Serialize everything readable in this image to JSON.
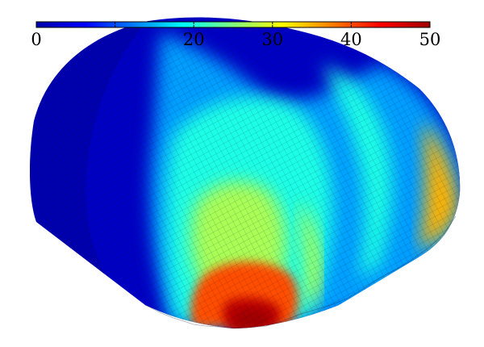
{
  "colorbar": {
    "min": 0,
    "max": 50,
    "ticks": [
      {
        "value": 0,
        "label": "0"
      },
      {
        "value": 20,
        "label": "20"
      },
      {
        "value": 30,
        "label": "30"
      },
      {
        "value": 40,
        "label": "40"
      },
      {
        "value": 50,
        "label": "50"
      }
    ],
    "minor_tick_values": [
      10
    ],
    "colormap": [
      "#0000a8",
      "#0000ff",
      "#0080ff",
      "#00ffff",
      "#80ff80",
      "#ffff00",
      "#ff8000",
      "#ff0000",
      "#a00000"
    ]
  },
  "surface": {
    "shape": "dome",
    "mesh": "quad-grid",
    "regions": [
      {
        "name": "back-band",
        "value": 2
      },
      {
        "name": "front-band",
        "value": 14
      },
      {
        "name": "outer-ring",
        "value": 20
      },
      {
        "name": "left-lobe",
        "value": 27
      },
      {
        "name": "inner-band",
        "value": 30
      },
      {
        "name": "right-lobe",
        "value": 35
      },
      {
        "name": "lower-band",
        "value": 40
      },
      {
        "name": "hot-spot",
        "value": 48
      }
    ]
  }
}
